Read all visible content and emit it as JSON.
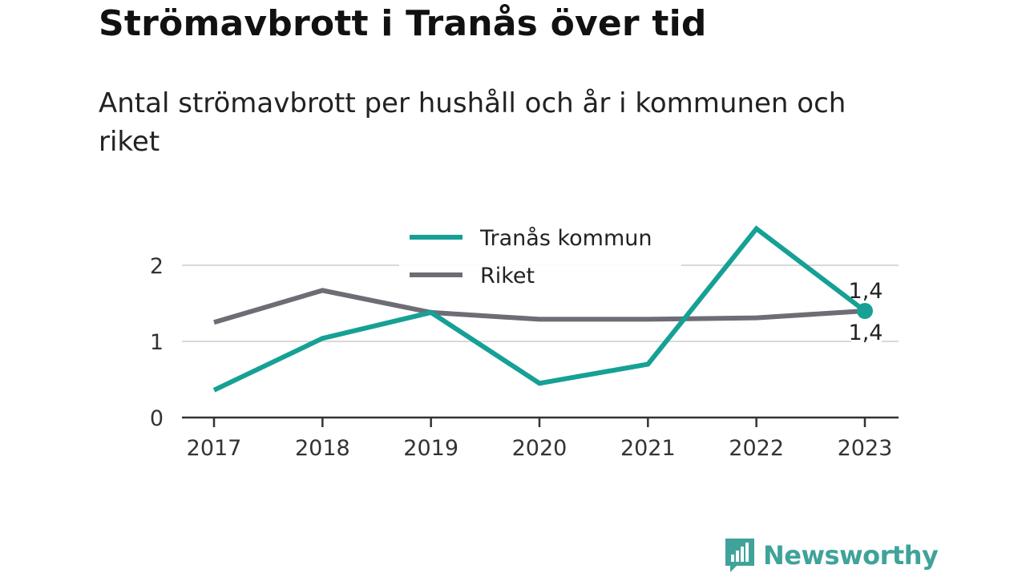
{
  "title": "Strömavbrott i Tranås över tid",
  "subtitle": "Antal strömavbrott per hushåll och år i kommunen och riket",
  "brand": {
    "name": "Newsworthy",
    "color": "#3fa39a",
    "icon": "bar-chart-speech-bubble-icon"
  },
  "chart_data": {
    "type": "line",
    "x": [
      "2017",
      "2018",
      "2019",
      "2020",
      "2021",
      "2022",
      "2023"
    ],
    "series": [
      {
        "name": "Tranås kommun",
        "color": "#16a096",
        "values": [
          0.36,
          1.04,
          1.38,
          0.45,
          0.7,
          2.48,
          1.4
        ]
      },
      {
        "name": "Riket",
        "color": "#6e6d75",
        "values": [
          1.25,
          1.67,
          1.38,
          1.29,
          1.29,
          1.31,
          1.4
        ]
      }
    ],
    "yticks": [
      0,
      1,
      2
    ],
    "ytick_labels": [
      "0",
      "1",
      "2"
    ],
    "ylim": [
      0,
      2.6
    ],
    "grid": true,
    "legend": "top-center",
    "end_labels": {
      "upper": "1,4",
      "lower": "1,4"
    }
  }
}
